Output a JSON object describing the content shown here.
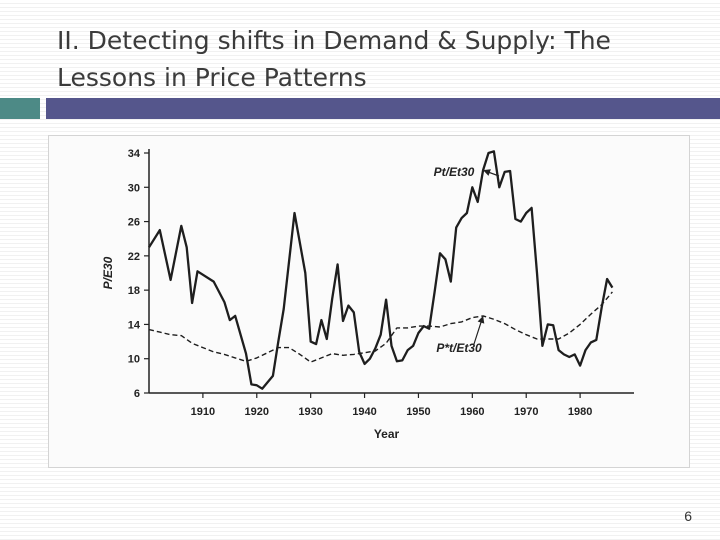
{
  "slide": {
    "title_line1": "II. Detecting shifts in Demand & Supply: The",
    "title_line2": "Lessons in Price Patterns",
    "page_number": "6",
    "accent_left": "#4d8a86",
    "accent_right": "#55568c"
  },
  "chart_data": {
    "type": "line",
    "title": "",
    "xlabel": "Year",
    "ylabel": "P/E30",
    "xlim": [
      1900,
      1990
    ],
    "ylim": [
      6,
      34
    ],
    "xticks": [
      1910,
      1920,
      1930,
      1940,
      1950,
      1960,
      1970,
      1980
    ],
    "yticks": [
      6,
      10,
      14,
      18,
      22,
      26,
      30,
      34
    ],
    "series": [
      {
        "name": "Pt/Et30",
        "style": "solid",
        "x": [
          1900,
          1902,
          1904,
          1906,
          1907,
          1908,
          1909,
          1912,
          1914,
          1915,
          1916,
          1918,
          1919,
          1920,
          1921,
          1923,
          1924,
          1925,
          1927,
          1929,
          1930,
          1931,
          1932,
          1933,
          1934,
          1935,
          1936,
          1937,
          1938,
          1939,
          1940,
          1941,
          1942,
          1943,
          1944,
          1945,
          1946,
          1947,
          1948,
          1949,
          1950,
          1951,
          1952,
          1953,
          1954,
          1955,
          1956,
          1957,
          1958,
          1959,
          1960,
          1961,
          1962,
          1963,
          1964,
          1965,
          1966,
          1967,
          1968,
          1969,
          1970,
          1971,
          1972,
          1973,
          1974,
          1975,
          1976,
          1977,
          1978,
          1979,
          1980,
          1981,
          1982,
          1983,
          1984,
          1985,
          1986
        ],
        "values": [
          23.0,
          25.0,
          19.2,
          25.5,
          23.0,
          16.5,
          20.2,
          19.0,
          16.6,
          14.5,
          15.0,
          10.6,
          7.0,
          6.9,
          6.5,
          8.0,
          12.0,
          15.8,
          27.0,
          20.0,
          12.0,
          11.7,
          14.5,
          12.3,
          17.0,
          21.0,
          14.4,
          16.2,
          15.4,
          10.8,
          9.4,
          10.0,
          11.2,
          12.8,
          16.9,
          11.5,
          9.7,
          9.8,
          11.0,
          11.5,
          13.0,
          13.8,
          13.5,
          17.8,
          22.3,
          21.6,
          19.0,
          25.3,
          26.4,
          27.0,
          30.0,
          28.3,
          32.0,
          34.0,
          34.2,
          30.0,
          31.8,
          31.9,
          26.3,
          26.0,
          27.0,
          27.6,
          20.0,
          11.5,
          14.0,
          13.9,
          11.0,
          10.5,
          10.2,
          10.5,
          9.2,
          11.0,
          11.9,
          12.2,
          16.0,
          19.3,
          18.3
        ]
      },
      {
        "name": "P*t/Et30",
        "style": "dashed",
        "x": [
          1900,
          1902,
          1904,
          1906,
          1908,
          1910,
          1912,
          1914,
          1916,
          1918,
          1920,
          1922,
          1924,
          1926,
          1928,
          1930,
          1932,
          1934,
          1936,
          1938,
          1940,
          1942,
          1944,
          1946,
          1948,
          1950,
          1952,
          1954,
          1956,
          1958,
          1960,
          1962,
          1964,
          1966,
          1968,
          1970,
          1972,
          1974,
          1976,
          1978,
          1980,
          1982,
          1984,
          1986
        ],
        "values": [
          13.4,
          13.1,
          12.8,
          12.7,
          11.8,
          11.3,
          10.8,
          10.5,
          10.1,
          9.7,
          10.1,
          10.7,
          11.3,
          11.3,
          10.5,
          9.6,
          10.1,
          10.6,
          10.4,
          10.5,
          10.7,
          10.9,
          11.8,
          13.6,
          13.6,
          13.8,
          13.8,
          13.7,
          14.1,
          14.3,
          14.8,
          15.0,
          14.6,
          14.1,
          13.4,
          12.8,
          12.3,
          12.3,
          12.3,
          13.0,
          14.0,
          15.2,
          16.3,
          17.8
        ]
      }
    ],
    "annotations": [
      {
        "text": "Pt/Et30",
        "target_series": "Pt/Et30",
        "target_x": 1962,
        "target_y": 32.0
      },
      {
        "text": "P*t/Et30",
        "target_series": "P*t/Et30",
        "target_x": 1962,
        "target_y": 15.0
      }
    ]
  }
}
